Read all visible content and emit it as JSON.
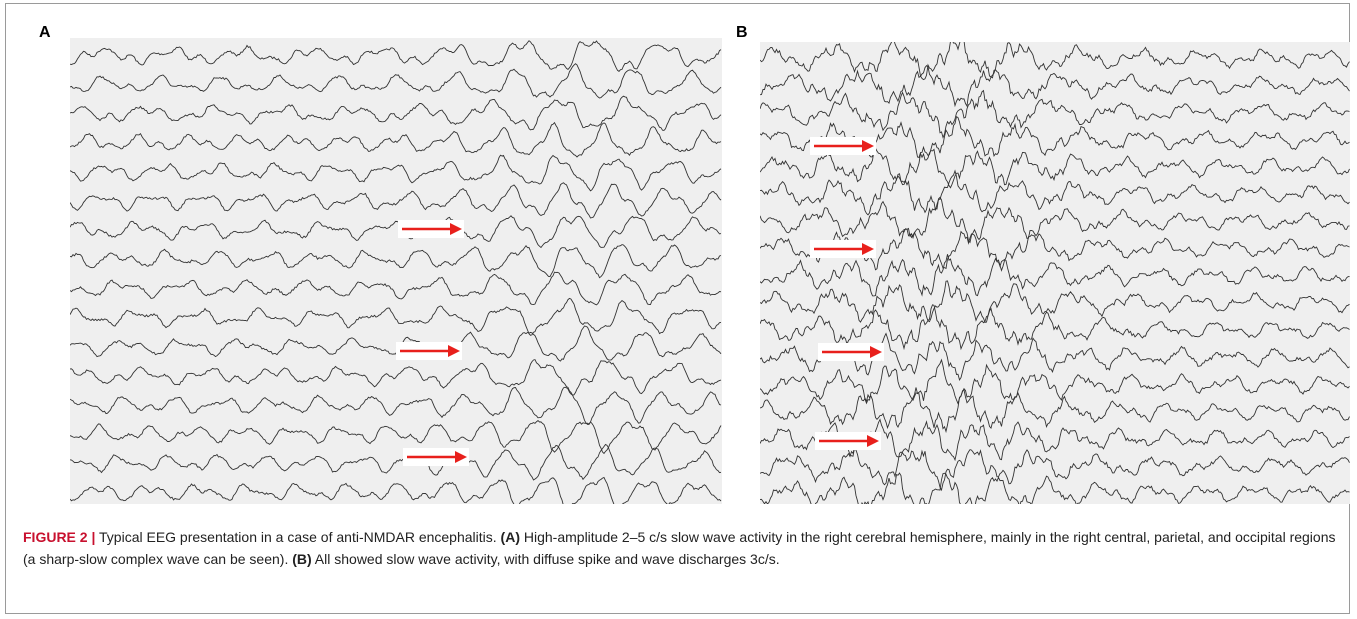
{
  "figure": {
    "panels": [
      {
        "label": "A"
      },
      {
        "label": "B"
      }
    ],
    "caption": {
      "number": "FIGURE 2 |",
      "text": "Typical EEG presentation in a case of anti-NMDAR encephalitis.",
      "parts": [
        {
          "label": "(A)",
          "text": "High-amplitude 2–5 c/s slow wave activity in the right cerebral hemisphere, mainly in the right central, parietal, and occipital regions (a sharp-slow complex wave can be seen)."
        },
        {
          "label": "(B)",
          "text": "All showed slow wave activity, with diffuse spike and wave discharges 3c/s."
        }
      ]
    }
  }
}
